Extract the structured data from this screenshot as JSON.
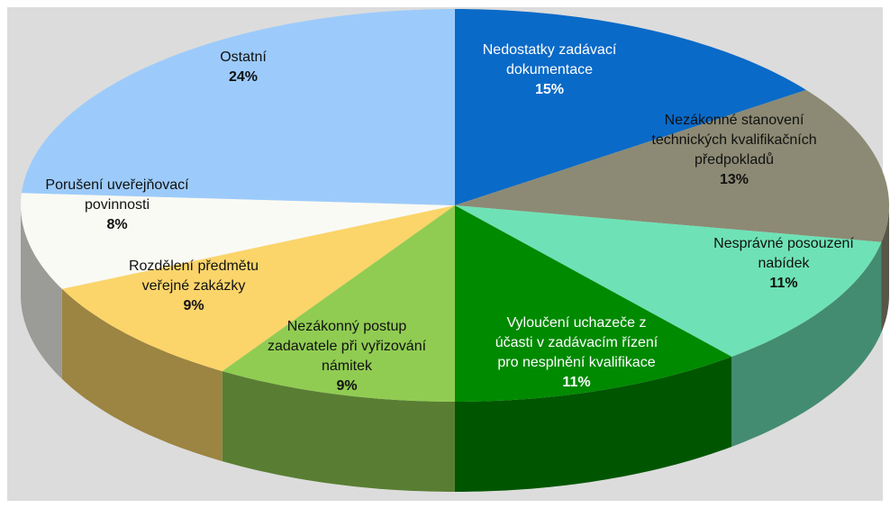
{
  "chart_data": {
    "type": "pie",
    "categories": [
      "Nedostatky zadávací dokumentace",
      "Nezákonné stanovení technických kvalifikačních předpokladů",
      "Nesprávné posouzení nabídek",
      "Vyloučení uchazeče z účasti v zadávacím řízení pro nesplnění kvalifikace",
      "Nezákonný postup zadavatele při vyřizování námitek",
      "Rozdělení předmětu veřejné zakázky",
      "Porušení uveřejňovací povinnosti",
      "Ostatní"
    ],
    "values": [
      15,
      13,
      11,
      11,
      9,
      9,
      8,
      24
    ],
    "value_labels": [
      "15%",
      "13%",
      "11%",
      "11%",
      "9%",
      "9%",
      "8%",
      "24%"
    ],
    "colors": [
      "#0a6ac8",
      "#8c8a74",
      "#6ee2b6",
      "#008a00",
      "#90cc52",
      "#fbd56a",
      "#fafaf4",
      "#9ccbfb"
    ]
  }
}
